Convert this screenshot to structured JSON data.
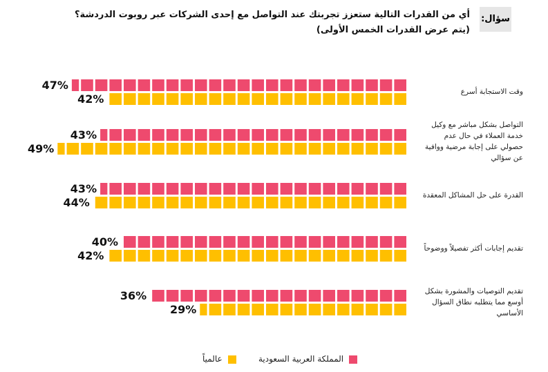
{
  "question_label": "سؤال:",
  "chart_data": {
    "type": "waffle-bar",
    "title": "أي من القدرات التالية ستعزز تجربتك عند التواصل مع إحدى الشركات عبر روبوت الدردشة؟",
    "subtitle": "(يتم عرض القدرات الخمس الأولى)",
    "categories": [
      "وقت الاستجابة أسرع",
      "التواصل بشكل مباشر مع وكيل خدمة العملاء في حال عدم حصولي على إجابة مرضية ووافية عن سؤالي",
      "القدرة على حل المشاكل المعقدة",
      "تقديم إجابات أكثر تفصيلاً ووضوحاً",
      "تقديم التوصيات والمشورة بشكل أوسع مما يتطلبه نطاق السؤال الأساسي"
    ],
    "series": [
      {
        "name": "المملكة العربية السعودية",
        "color": "#ee4a6e",
        "values": [
          47,
          43,
          43,
          40,
          36
        ],
        "value_labels": [
          "47%",
          "43%",
          "43%",
          "40%",
          "36%"
        ]
      },
      {
        "name": "عالمياً",
        "color": "#ffbf00",
        "values": [
          42,
          49,
          44,
          42,
          29
        ],
        "value_labels": [
          "42%",
          "49%",
          "44%",
          "42%",
          "29%"
        ]
      }
    ]
  }
}
